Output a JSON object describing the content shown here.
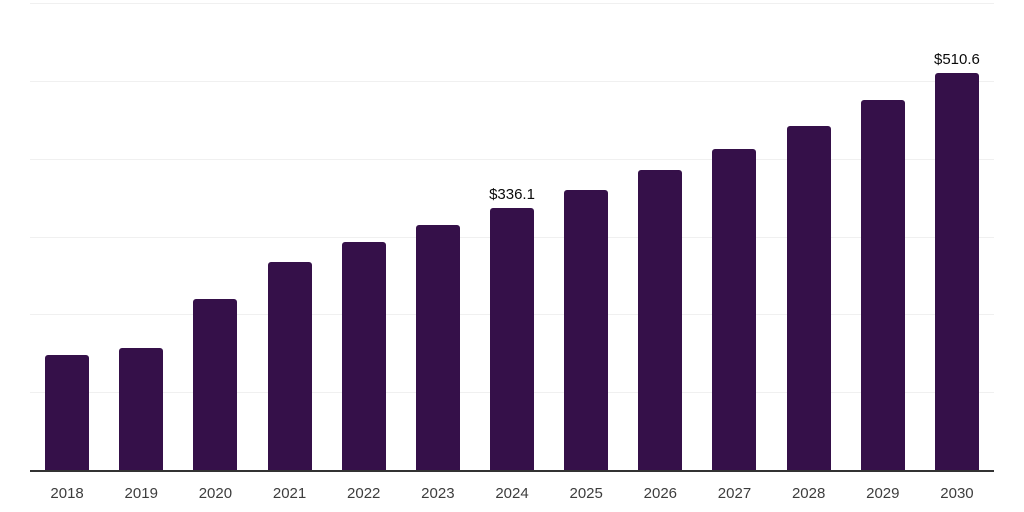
{
  "chart_data": {
    "type": "bar",
    "title": "",
    "xlabel": "",
    "ylabel": "",
    "categories": [
      "2018",
      "2019",
      "2020",
      "2021",
      "2022",
      "2023",
      "2024",
      "2025",
      "2026",
      "2027",
      "2028",
      "2029",
      "2030"
    ],
    "values": [
      148.0,
      157.4,
      220.0,
      267.0,
      293.0,
      314.5,
      336.1,
      359.5,
      385.0,
      413.0,
      442.5,
      475.5,
      510.6
    ],
    "data_labels": {
      "2024": "$336.1",
      "2030": "$510.6"
    },
    "ylim": [
      0,
      600
    ],
    "gridline_step": 100,
    "grid": true,
    "legend": false,
    "y_axis_labels_visible": false
  },
  "colors": {
    "bar": "#351049",
    "grid": "#f0f0f0",
    "axis": "#333333",
    "tick_label": "#3d3d3d",
    "data_label": "#0a0a0a",
    "background": "#ffffff"
  }
}
